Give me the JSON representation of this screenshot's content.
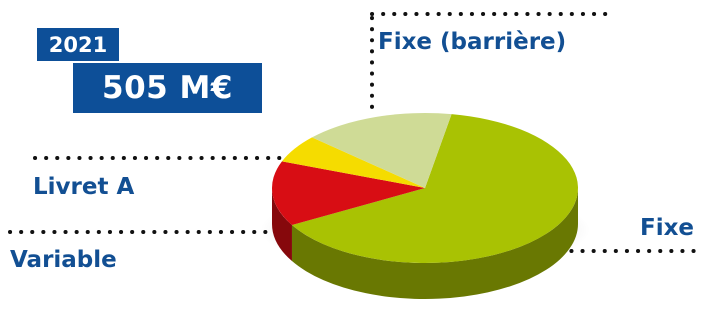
{
  "header": {
    "year": "2021",
    "total": "505 M€"
  },
  "chart_data": {
    "type": "pie",
    "title": "",
    "slices": [
      {
        "label": "Fixe",
        "value": 64,
        "color": "#a9c203"
      },
      {
        "label": "Variable",
        "value": 14,
        "color": "#d80d14"
      },
      {
        "label": "Livret A",
        "value": 6,
        "color": "#f5dc00"
      },
      {
        "label": "Fixe (barrière)",
        "value": 16,
        "color": "#cfdb96"
      }
    ],
    "three_d": true
  },
  "colors": {
    "brand_blue": "#0d4f98",
    "label_text": "#124f93",
    "leader_dots": "#111111"
  }
}
